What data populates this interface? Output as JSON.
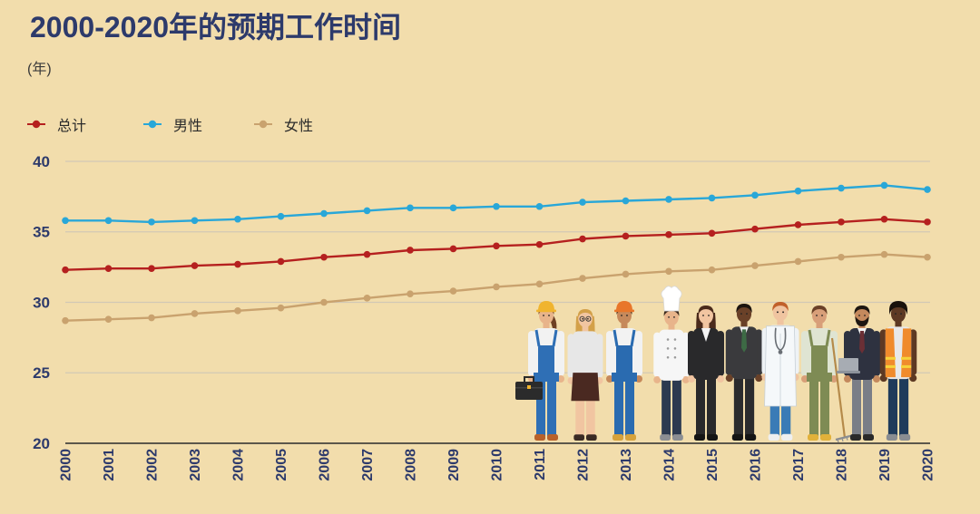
{
  "chart_data": {
    "type": "line",
    "title": "2000-2020年的预期工作时间",
    "ylabel": "(年)",
    "xlabel": "",
    "x": [
      2000,
      2001,
      2002,
      2003,
      2004,
      2005,
      2006,
      2007,
      2008,
      2009,
      2010,
      2011,
      2012,
      2013,
      2014,
      2015,
      2016,
      2017,
      2018,
      2019,
      2020
    ],
    "ylim": [
      20,
      40
    ],
    "yticks": [
      20,
      25,
      30,
      35,
      40
    ],
    "grid": true,
    "legend_position": "top-left",
    "series": [
      {
        "name": "总计",
        "color": "#b5201f",
        "values": [
          32.3,
          32.4,
          32.4,
          32.6,
          32.7,
          32.9,
          33.2,
          33.4,
          33.7,
          33.8,
          34.0,
          34.1,
          34.5,
          34.7,
          34.8,
          34.9,
          35.2,
          35.5,
          35.7,
          35.9,
          35.7
        ]
      },
      {
        "name": "男性",
        "color": "#29a7d8",
        "values": [
          35.8,
          35.8,
          35.7,
          35.8,
          35.9,
          36.1,
          36.3,
          36.5,
          36.7,
          36.7,
          36.8,
          36.8,
          37.1,
          37.2,
          37.3,
          37.4,
          37.6,
          37.9,
          38.1,
          38.3,
          38.0
        ]
      },
      {
        "name": "女性",
        "color": "#c9a26e",
        "values": [
          28.7,
          28.8,
          28.9,
          29.2,
          29.4,
          29.6,
          30.0,
          30.3,
          30.6,
          30.8,
          31.1,
          31.3,
          31.7,
          32.0,
          32.2,
          32.3,
          32.6,
          32.9,
          33.2,
          33.4,
          33.2
        ]
      }
    ]
  },
  "colors": {
    "background": "#f2ddac",
    "title": "#2d3a6b",
    "axis_labels": "#2d3a6b"
  },
  "illustration_figures": [
    "construction-worker",
    "woman-casual",
    "factory-worker",
    "chef",
    "businesswoman",
    "businessman",
    "doctor",
    "gardener",
    "office-worker",
    "safety-vest-worker"
  ]
}
